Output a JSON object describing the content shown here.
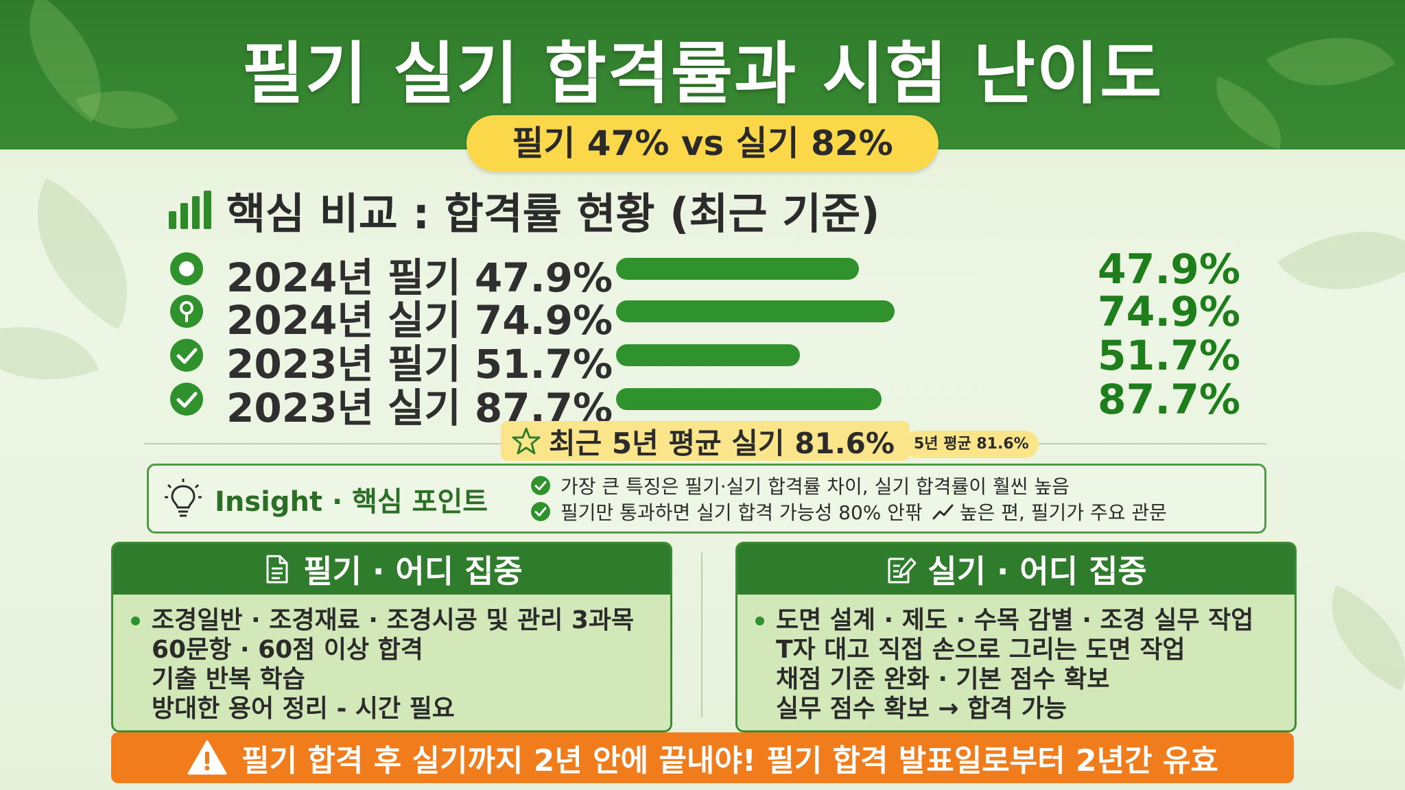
{
  "title": "필기 실기 합격률과 시험 난이도",
  "subtitle": "필기 47% vs 실기 82%",
  "section_title": "핵심 비교 : 합격률 현황 (최근 기준)",
  "chart_data": {
    "type": "bar",
    "categories": [
      "2024년 필기 47.9%",
      "2024년 실기 74.9%",
      "2023년 필기 51.7%",
      "2023년 실기 87.7%"
    ],
    "values": [
      47.9,
      74.9,
      51.7,
      87.7
    ],
    "value_labels": [
      "47.9%",
      "74.9%",
      "51.7%",
      "87.7%"
    ],
    "unit": "%",
    "orientation": "horizontal",
    "color": "#2f922c"
  },
  "rows": [
    {
      "label": "2024년 필기 47.9%",
      "value_label": "47.9%",
      "icon": "target-icon"
    },
    {
      "label": "2024년 실기 74.9%",
      "value_label": "74.9%",
      "icon": "location-pin-icon"
    },
    {
      "label": "2023년 필기 51.7%",
      "value_label": "51.7%",
      "icon": "check-circle-icon"
    },
    {
      "label": "2023년 실기 87.7%",
      "value_label": "87.7%",
      "icon": "check-circle-icon"
    }
  ],
  "average": {
    "label": "최근 5년 평균 실기 81.6%",
    "small_label": "5년 평균 81.6%"
  },
  "insight": {
    "heading": "Insight · 핵심 포인트",
    "point1": "가장 큰 특징은 필기·실기 합격률 차이, 실기 합격률이 훨씬 높음",
    "point2_a": "필기만 통과하면 실기 합격 가능성 80% 안팎",
    "point2_b": "높은 편, 필기가 주요 관문"
  },
  "written_card": {
    "title": "필기 · 어디 집중",
    "items": [
      "조경일반 · 조경재료 · 조경시공 및 관리 3과목",
      "60문항 · 60점 이상 합격",
      "기출 반복 학습",
      "방대한 용어 정리 - 시간 필요"
    ]
  },
  "practical_card": {
    "title": "실기 · 어디 집중",
    "items": [
      "도면 설계 · 제도 · 수목 감별 · 조경 실무 작업",
      "T자 대고 직접 손으로 그리는 도면 작업",
      "채점 기준 완화 · 기본 점수 확보",
      "실무 점수 확보 → 합격 가능"
    ]
  },
  "warning": "필기 합격 후 실기까지 2년 안에 끝내야! 필기 합격 발표일로부터 2년간 유효",
  "colors": {
    "header_green": "#2f7d2c",
    "bar_green": "#2f922c",
    "value_green": "#1f7e1c",
    "pill_yellow": "#fbd84a",
    "warning_orange": "#f07c1c",
    "card_fill": "#d2e8b8"
  }
}
